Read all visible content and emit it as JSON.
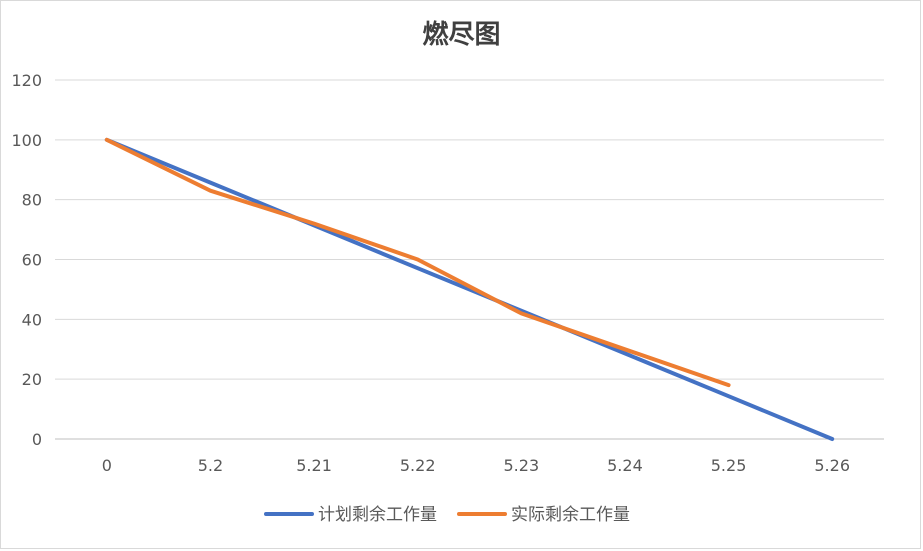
{
  "chart_data": {
    "type": "line",
    "title": "燃尽图",
    "xlabel": "",
    "ylabel": "",
    "categories": [
      "0",
      "5.2",
      "5.21",
      "5.22",
      "5.23",
      "5.24",
      "5.25",
      "5.26"
    ],
    "ylim": [
      0,
      120
    ],
    "yticks": [
      0,
      20,
      40,
      60,
      80,
      100,
      120
    ],
    "grid": true,
    "legend_position": "bottom",
    "series": [
      {
        "name": "计划剩余工作量",
        "color": "#4472C4",
        "values": [
          100,
          85.7,
          71.4,
          57.1,
          42.9,
          28.6,
          14.3,
          0
        ]
      },
      {
        "name": "实际剩余工作量",
        "color": "#ED7D31",
        "values": [
          100,
          83,
          72,
          60,
          42,
          30,
          18,
          null
        ]
      }
    ]
  }
}
